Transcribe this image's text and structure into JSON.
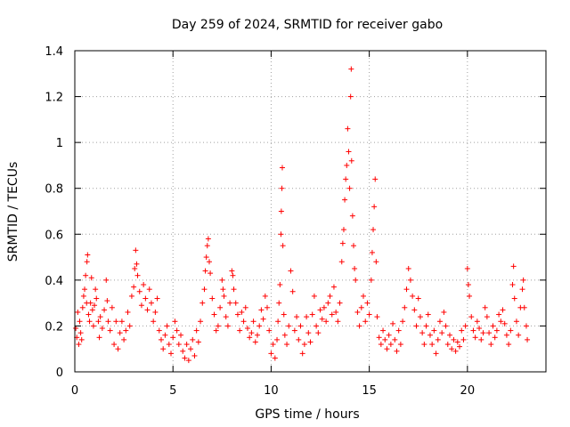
{
  "chart_data": {
    "type": "scatter",
    "title": "Day 259 of 2024, SRMTID for receiver gabo",
    "xlabel": "GPS time / hours",
    "ylabel": "SRMTID / TECUs",
    "xlim": [
      0,
      24
    ],
    "ylim": [
      0,
      1.4
    ],
    "xticks": [
      0,
      5,
      10,
      15,
      20
    ],
    "xtick_labels": [
      "0",
      "5",
      "10",
      "15",
      "20"
    ],
    "yticks": [
      0,
      0.2,
      0.4,
      0.6,
      0.8,
      1.0,
      1.2,
      1.4
    ],
    "ytick_labels": [
      "0",
      "0.2",
      "0.4",
      "0.6",
      "0.8",
      "1",
      "1.2",
      "1.4"
    ],
    "grid": true,
    "marker": "+",
    "color": "#ff0000",
    "series": [
      {
        "name": "SRMTID",
        "points": [
          [
            0.05,
            0.19
          ],
          [
            0.1,
            0.15
          ],
          [
            0.15,
            0.26
          ],
          [
            0.2,
            0.12
          ],
          [
            0.25,
            0.22
          ],
          [
            0.3,
            0.17
          ],
          [
            0.35,
            0.14
          ],
          [
            0.4,
            0.28
          ],
          [
            0.45,
            0.33
          ],
          [
            0.5,
            0.36
          ],
          [
            0.55,
            0.42
          ],
          [
            0.6,
            0.3
          ],
          [
            0.62,
            0.48
          ],
          [
            0.65,
            0.51
          ],
          [
            0.7,
            0.25
          ],
          [
            0.75,
            0.22
          ],
          [
            0.8,
            0.3
          ],
          [
            0.85,
            0.41
          ],
          [
            0.9,
            0.27
          ],
          [
            0.95,
            0.2
          ],
          [
            1.0,
            0.29
          ],
          [
            1.05,
            0.36
          ],
          [
            1.1,
            0.32
          ],
          [
            1.2,
            0.22
          ],
          [
            1.25,
            0.15
          ],
          [
            1.3,
            0.24
          ],
          [
            1.4,
            0.19
          ],
          [
            1.5,
            0.27
          ],
          [
            1.6,
            0.4
          ],
          [
            1.65,
            0.31
          ],
          [
            1.7,
            0.22
          ],
          [
            1.8,
            0.18
          ],
          [
            1.9,
            0.28
          ],
          [
            2.0,
            0.12
          ],
          [
            2.1,
            0.22
          ],
          [
            2.2,
            0.1
          ],
          [
            2.3,
            0.17
          ],
          [
            2.4,
            0.22
          ],
          [
            2.5,
            0.14
          ],
          [
            2.6,
            0.18
          ],
          [
            2.7,
            0.26
          ],
          [
            2.8,
            0.2
          ],
          [
            2.9,
            0.33
          ],
          [
            3.0,
            0.37
          ],
          [
            3.05,
            0.45
          ],
          [
            3.1,
            0.53
          ],
          [
            3.15,
            0.47
          ],
          [
            3.2,
            0.42
          ],
          [
            3.3,
            0.35
          ],
          [
            3.4,
            0.29
          ],
          [
            3.5,
            0.38
          ],
          [
            3.6,
            0.32
          ],
          [
            3.7,
            0.27
          ],
          [
            3.8,
            0.36
          ],
          [
            3.9,
            0.3
          ],
          [
            4.0,
            0.22
          ],
          [
            4.1,
            0.26
          ],
          [
            4.2,
            0.32
          ],
          [
            4.3,
            0.18
          ],
          [
            4.4,
            0.14
          ],
          [
            4.5,
            0.1
          ],
          [
            4.6,
            0.16
          ],
          [
            4.7,
            0.2
          ],
          [
            4.8,
            0.12
          ],
          [
            4.9,
            0.08
          ],
          [
            5.0,
            0.15
          ],
          [
            5.1,
            0.22
          ],
          [
            5.2,
            0.18
          ],
          [
            5.3,
            0.12
          ],
          [
            5.4,
            0.16
          ],
          [
            5.5,
            0.09
          ],
          [
            5.6,
            0.06
          ],
          [
            5.7,
            0.12
          ],
          [
            5.8,
            0.05
          ],
          [
            5.9,
            0.1
          ],
          [
            6.0,
            0.14
          ],
          [
            6.1,
            0.07
          ],
          [
            6.2,
            0.18
          ],
          [
            6.3,
            0.13
          ],
          [
            6.4,
            0.22
          ],
          [
            6.5,
            0.3
          ],
          [
            6.6,
            0.36
          ],
          [
            6.65,
            0.44
          ],
          [
            6.7,
            0.5
          ],
          [
            6.75,
            0.55
          ],
          [
            6.8,
            0.58
          ],
          [
            6.85,
            0.48
          ],
          [
            6.9,
            0.43
          ],
          [
            7.0,
            0.32
          ],
          [
            7.1,
            0.25
          ],
          [
            7.2,
            0.18
          ],
          [
            7.3,
            0.2
          ],
          [
            7.4,
            0.28
          ],
          [
            7.5,
            0.4
          ],
          [
            7.55,
            0.36
          ],
          [
            7.6,
            0.33
          ],
          [
            7.7,
            0.24
          ],
          [
            7.8,
            0.2
          ],
          [
            7.9,
            0.3
          ],
          [
            8.0,
            0.44
          ],
          [
            8.05,
            0.42
          ],
          [
            8.1,
            0.36
          ],
          [
            8.2,
            0.3
          ],
          [
            8.3,
            0.25
          ],
          [
            8.4,
            0.18
          ],
          [
            8.5,
            0.26
          ],
          [
            8.6,
            0.22
          ],
          [
            8.7,
            0.28
          ],
          [
            8.8,
            0.19
          ],
          [
            8.9,
            0.15
          ],
          [
            9.0,
            0.17
          ],
          [
            9.1,
            0.22
          ],
          [
            9.2,
            0.13
          ],
          [
            9.3,
            0.16
          ],
          [
            9.4,
            0.2
          ],
          [
            9.5,
            0.27
          ],
          [
            9.6,
            0.23
          ],
          [
            9.7,
            0.33
          ],
          [
            9.8,
            0.28
          ],
          [
            9.9,
            0.18
          ],
          [
            10.0,
            0.08
          ],
          [
            10.1,
            0.12
          ],
          [
            10.2,
            0.06
          ],
          [
            10.3,
            0.14
          ],
          [
            10.35,
            0.22
          ],
          [
            10.4,
            0.3
          ],
          [
            10.45,
            0.38
          ],
          [
            10.5,
            0.6
          ],
          [
            10.52,
            0.7
          ],
          [
            10.55,
            0.8
          ],
          [
            10.57,
            0.89
          ],
          [
            10.6,
            0.55
          ],
          [
            10.65,
            0.25
          ],
          [
            10.7,
            0.16
          ],
          [
            10.8,
            0.12
          ],
          [
            10.9,
            0.2
          ],
          [
            11.0,
            0.44
          ],
          [
            11.1,
            0.35
          ],
          [
            11.2,
            0.18
          ],
          [
            11.3,
            0.24
          ],
          [
            11.4,
            0.14
          ],
          [
            11.5,
            0.2
          ],
          [
            11.6,
            0.08
          ],
          [
            11.7,
            0.12
          ],
          [
            11.8,
            0.24
          ],
          [
            11.9,
            0.17
          ],
          [
            12.0,
            0.13
          ],
          [
            12.1,
            0.25
          ],
          [
            12.2,
            0.33
          ],
          [
            12.3,
            0.2
          ],
          [
            12.4,
            0.17
          ],
          [
            12.5,
            0.27
          ],
          [
            12.6,
            0.23
          ],
          [
            12.7,
            0.28
          ],
          [
            12.8,
            0.22
          ],
          [
            12.9,
            0.3
          ],
          [
            13.0,
            0.33
          ],
          [
            13.1,
            0.25
          ],
          [
            13.2,
            0.37
          ],
          [
            13.3,
            0.26
          ],
          [
            13.4,
            0.22
          ],
          [
            13.5,
            0.3
          ],
          [
            13.6,
            0.48
          ],
          [
            13.65,
            0.56
          ],
          [
            13.7,
            0.62
          ],
          [
            13.75,
            0.75
          ],
          [
            13.8,
            0.84
          ],
          [
            13.85,
            0.9
          ],
          [
            13.9,
            1.06
          ],
          [
            13.95,
            0.96
          ],
          [
            14.0,
            0.8
          ],
          [
            14.05,
            1.2
          ],
          [
            14.08,
            1.32
          ],
          [
            14.1,
            0.92
          ],
          [
            14.15,
            0.68
          ],
          [
            14.2,
            0.55
          ],
          [
            14.25,
            0.45
          ],
          [
            14.3,
            0.4
          ],
          [
            14.4,
            0.26
          ],
          [
            14.5,
            0.2
          ],
          [
            14.6,
            0.28
          ],
          [
            14.7,
            0.33
          ],
          [
            14.8,
            0.22
          ],
          [
            14.9,
            0.3
          ],
          [
            15.0,
            0.25
          ],
          [
            15.1,
            0.4
          ],
          [
            15.15,
            0.52
          ],
          [
            15.2,
            0.62
          ],
          [
            15.25,
            0.72
          ],
          [
            15.3,
            0.84
          ],
          [
            15.35,
            0.48
          ],
          [
            15.4,
            0.24
          ],
          [
            15.5,
            0.15
          ],
          [
            15.6,
            0.12
          ],
          [
            15.7,
            0.18
          ],
          [
            15.8,
            0.14
          ],
          [
            15.9,
            0.1
          ],
          [
            16.0,
            0.16
          ],
          [
            16.1,
            0.12
          ],
          [
            16.2,
            0.21
          ],
          [
            16.3,
            0.14
          ],
          [
            16.4,
            0.09
          ],
          [
            16.5,
            0.18
          ],
          [
            16.6,
            0.12
          ],
          [
            16.7,
            0.22
          ],
          [
            16.8,
            0.28
          ],
          [
            16.9,
            0.36
          ],
          [
            17.0,
            0.45
          ],
          [
            17.1,
            0.4
          ],
          [
            17.2,
            0.33
          ],
          [
            17.3,
            0.27
          ],
          [
            17.4,
            0.2
          ],
          [
            17.5,
            0.32
          ],
          [
            17.6,
            0.24
          ],
          [
            17.7,
            0.17
          ],
          [
            17.8,
            0.12
          ],
          [
            17.9,
            0.2
          ],
          [
            18.0,
            0.25
          ],
          [
            18.1,
            0.16
          ],
          [
            18.2,
            0.12
          ],
          [
            18.3,
            0.18
          ],
          [
            18.4,
            0.08
          ],
          [
            18.5,
            0.14
          ],
          [
            18.6,
            0.22
          ],
          [
            18.7,
            0.17
          ],
          [
            18.8,
            0.26
          ],
          [
            18.9,
            0.2
          ],
          [
            19.0,
            0.12
          ],
          [
            19.1,
            0.16
          ],
          [
            19.2,
            0.1
          ],
          [
            19.3,
            0.14
          ],
          [
            19.4,
            0.09
          ],
          [
            19.5,
            0.13
          ],
          [
            19.6,
            0.11
          ],
          [
            19.7,
            0.18
          ],
          [
            19.8,
            0.14
          ],
          [
            19.9,
            0.2
          ],
          [
            20.0,
            0.45
          ],
          [
            20.05,
            0.38
          ],
          [
            20.1,
            0.33
          ],
          [
            20.2,
            0.24
          ],
          [
            20.3,
            0.18
          ],
          [
            20.4,
            0.15
          ],
          [
            20.5,
            0.22
          ],
          [
            20.6,
            0.19
          ],
          [
            20.7,
            0.14
          ],
          [
            20.8,
            0.17
          ],
          [
            20.9,
            0.28
          ],
          [
            21.0,
            0.24
          ],
          [
            21.1,
            0.17
          ],
          [
            21.2,
            0.12
          ],
          [
            21.3,
            0.2
          ],
          [
            21.4,
            0.15
          ],
          [
            21.5,
            0.18
          ],
          [
            21.6,
            0.25
          ],
          [
            21.7,
            0.22
          ],
          [
            21.8,
            0.27
          ],
          [
            21.9,
            0.21
          ],
          [
            22.0,
            0.16
          ],
          [
            22.1,
            0.12
          ],
          [
            22.2,
            0.18
          ],
          [
            22.3,
            0.38
          ],
          [
            22.35,
            0.46
          ],
          [
            22.4,
            0.32
          ],
          [
            22.5,
            0.22
          ],
          [
            22.6,
            0.16
          ],
          [
            22.7,
            0.28
          ],
          [
            22.8,
            0.36
          ],
          [
            22.85,
            0.4
          ],
          [
            22.9,
            0.28
          ],
          [
            23.0,
            0.2
          ],
          [
            23.05,
            0.14
          ]
        ]
      }
    ]
  }
}
